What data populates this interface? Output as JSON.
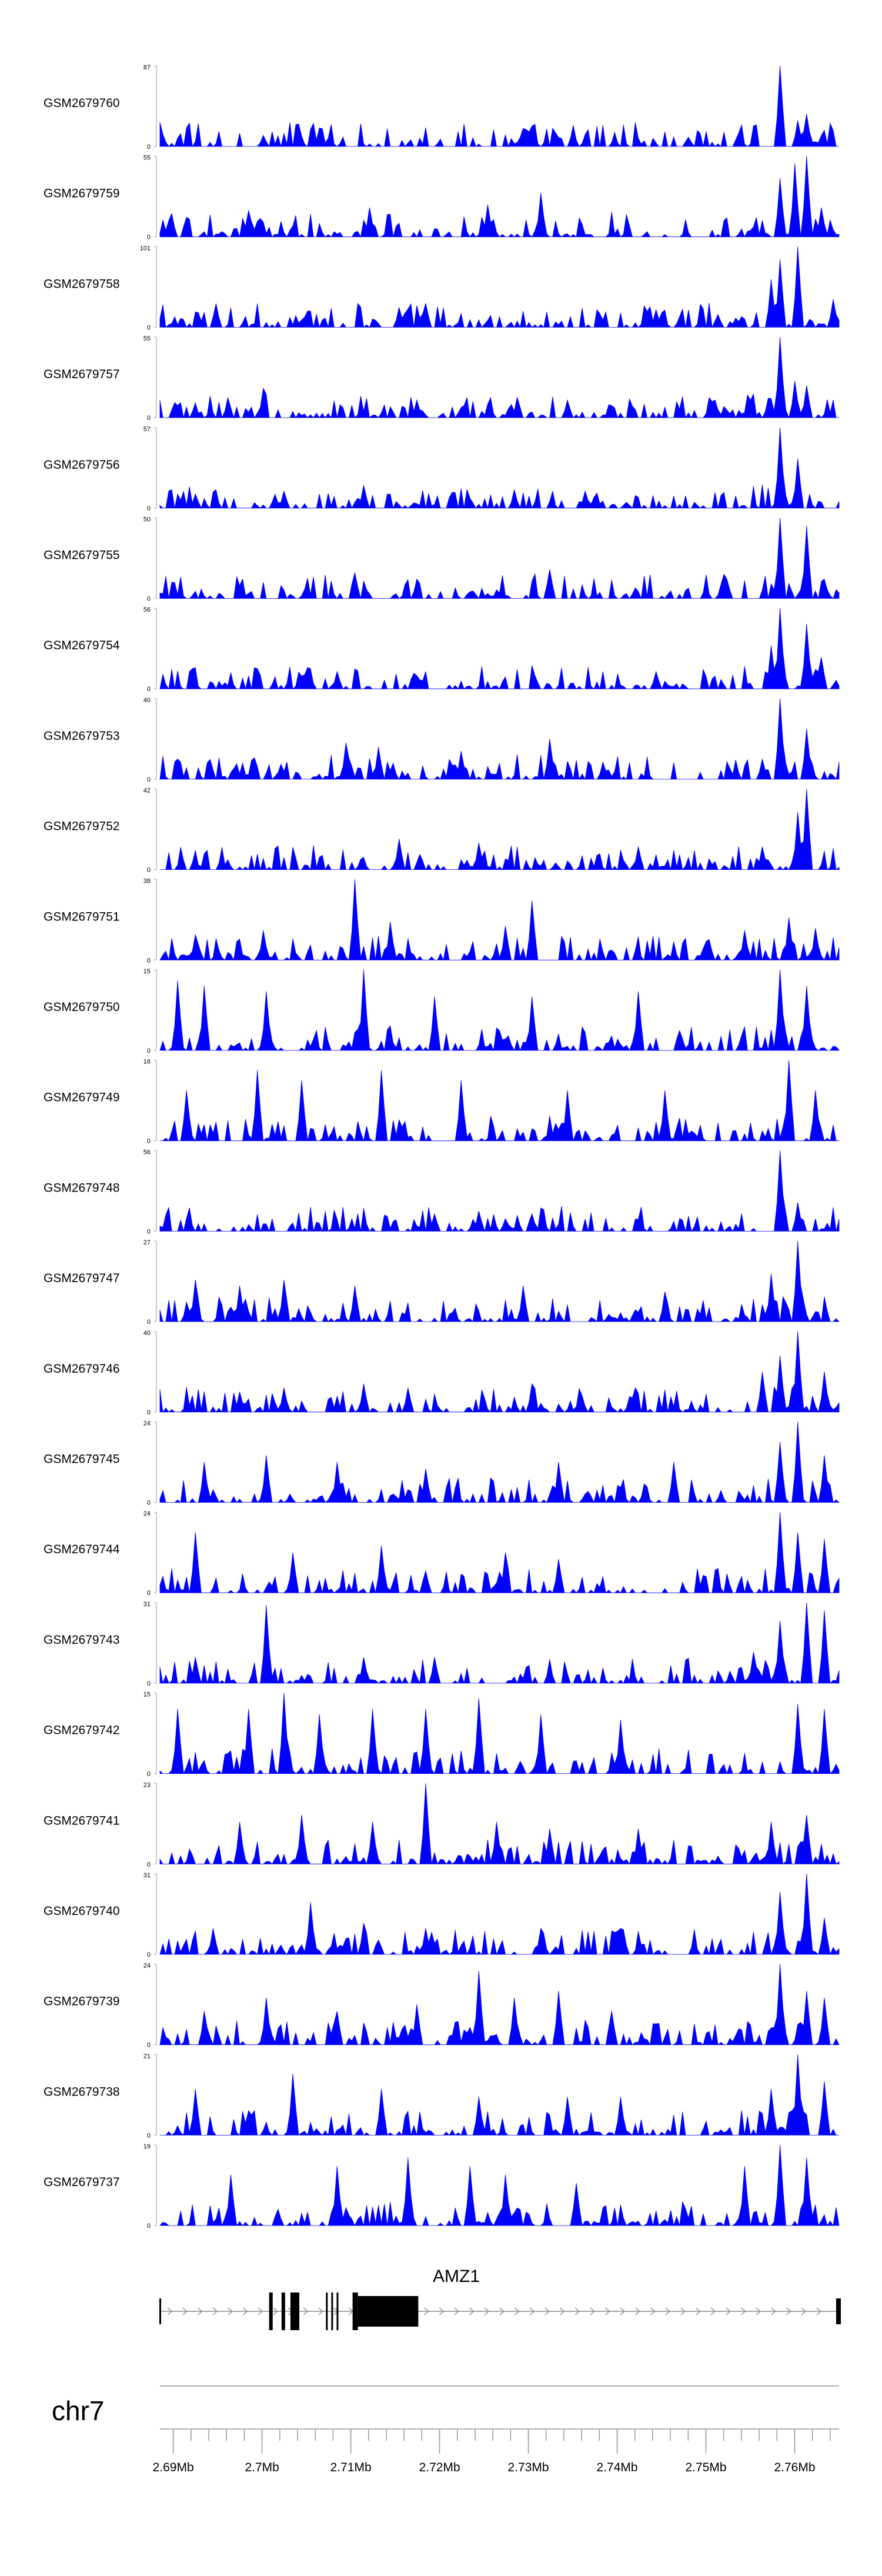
{
  "chart_data": {
    "type": "area",
    "description_style": "genome browser coverage tracks",
    "track_color": "#0000ff",
    "x_unit": "Mb",
    "xlim": [
      2.6885,
      2.765
    ],
    "tracks": [
      {
        "name": "GSM2679760",
        "ymax_label": "87",
        "ymin_label": "0",
        "ymax": 87,
        "peaks": [
          [
            2.7,
            12
          ],
          [
            2.7065,
            20
          ],
          [
            2.729,
            10
          ],
          [
            2.748,
            10
          ],
          [
            2.7585,
            87
          ],
          [
            2.7605,
            28
          ],
          [
            2.7615,
            35
          ],
          [
            2.763,
            12
          ]
        ]
      },
      {
        "name": "GSM2679759",
        "ymax_label": "55",
        "ymin_label": "0",
        "ymax": 55,
        "peaks": [
          [
            2.6985,
            18
          ],
          [
            2.712,
            20
          ],
          [
            2.7255,
            22
          ],
          [
            2.7315,
            30
          ],
          [
            2.7585,
            40
          ],
          [
            2.76,
            50
          ],
          [
            2.7615,
            55
          ],
          [
            2.763,
            20
          ]
        ]
      },
      {
        "name": "GSM2679758",
        "ymax_label": "101",
        "ymin_label": "0",
        "ymax": 101,
        "peaks": [
          [
            2.7155,
            25
          ],
          [
            2.7185,
            30
          ],
          [
            2.7445,
            22
          ],
          [
            2.7575,
            60
          ],
          [
            2.7585,
            85
          ],
          [
            2.7605,
            101
          ],
          [
            2.7645,
            35
          ]
        ]
      },
      {
        "name": "GSM2679757",
        "ymax_label": "55",
        "ymin_label": "0",
        "ymax": 55,
        "peaks": [
          [
            2.7,
            20
          ],
          [
            2.7175,
            12
          ],
          [
            2.7345,
            12
          ],
          [
            2.751,
            12
          ],
          [
            2.7585,
            55
          ],
          [
            2.76,
            25
          ],
          [
            2.7615,
            22
          ]
        ]
      },
      {
        "name": "GSM2679756",
        "ymax_label": "57",
        "ymin_label": "0",
        "ymax": 57,
        "peaks": [
          [
            2.6925,
            10
          ],
          [
            2.7025,
            12
          ],
          [
            2.7115,
            16
          ],
          [
            2.7365,
            12
          ],
          [
            2.7585,
            57
          ],
          [
            2.7605,
            35
          ]
        ]
      },
      {
        "name": "GSM2679755",
        "ymax_label": "50",
        "ymin_label": "0",
        "ymax": 50,
        "peaks": [
          [
            2.7105,
            16
          ],
          [
            2.7175,
            12
          ],
          [
            2.7325,
            18
          ],
          [
            2.7525,
            12
          ],
          [
            2.7585,
            50
          ],
          [
            2.7615,
            45
          ],
          [
            2.7635,
            12
          ]
        ]
      },
      {
        "name": "GSM2679754",
        "ymax_label": "56",
        "ymin_label": "0",
        "ymax": 56,
        "peaks": [
          [
            2.6995,
            14
          ],
          [
            2.7085,
            12
          ],
          [
            2.7445,
            12
          ],
          [
            2.7575,
            30
          ],
          [
            2.7585,
            56
          ],
          [
            2.7615,
            45
          ],
          [
            2.763,
            22
          ]
        ]
      },
      {
        "name": "GSM2679753",
        "ymax_label": "40",
        "ymin_label": "0",
        "ymax": 40,
        "peaks": [
          [
            2.7095,
            18
          ],
          [
            2.713,
            16
          ],
          [
            2.7225,
            14
          ],
          [
            2.7325,
            20
          ],
          [
            2.7565,
            10
          ],
          [
            2.7585,
            40
          ],
          [
            2.7615,
            25
          ]
        ]
      },
      {
        "name": "GSM2679752",
        "ymax_label": "42",
        "ymin_label": "0",
        "ymax": 42,
        "peaks": [
          [
            2.7155,
            16
          ],
          [
            2.7245,
            14
          ],
          [
            2.7425,
            12
          ],
          [
            2.7565,
            12
          ],
          [
            2.7605,
            30
          ],
          [
            2.7615,
            42
          ]
        ]
      },
      {
        "name": "GSM2679751",
        "ymax_label": "38",
        "ymin_label": "0",
        "ymax": 38,
        "peaks": [
          [
            2.6925,
            12
          ],
          [
            2.7,
            14
          ],
          [
            2.7105,
            38
          ],
          [
            2.7145,
            18
          ],
          [
            2.7275,
            16
          ],
          [
            2.7305,
            28
          ],
          [
            2.7545,
            14
          ],
          [
            2.7595,
            20
          ],
          [
            2.7625,
            15
          ]
        ]
      },
      {
        "name": "GSM2679750",
        "ymax_label": "15",
        "ymin_label": "0",
        "ymax": 15,
        "peaks": [
          [
            2.6905,
            13
          ],
          [
            2.6935,
            12
          ],
          [
            2.7005,
            11
          ],
          [
            2.7115,
            15
          ],
          [
            2.7195,
            10
          ],
          [
            2.7305,
            10
          ],
          [
            2.7425,
            11
          ],
          [
            2.7585,
            15
          ],
          [
            2.7615,
            12
          ]
        ]
      },
      {
        "name": "GSM2679749",
        "ymax_label": "16",
        "ymin_label": "0",
        "ymax": 16,
        "peaks": [
          [
            2.6915,
            10
          ],
          [
            2.6995,
            14
          ],
          [
            2.7045,
            12
          ],
          [
            2.7135,
            14
          ],
          [
            2.7225,
            12
          ],
          [
            2.7345,
            10
          ],
          [
            2.7455,
            10
          ],
          [
            2.7595,
            16
          ],
          [
            2.7625,
            10
          ]
        ]
      },
      {
        "name": "GSM2679748",
        "ymax_label": "56",
        "ymin_label": "0",
        "ymax": 56,
        "peaks": [
          [
            2.7195,
            12
          ],
          [
            2.7245,
            14
          ],
          [
            2.7305,
            12
          ],
          [
            2.7585,
            56
          ],
          [
            2.7605,
            20
          ]
        ]
      },
      {
        "name": "GSM2679747",
        "ymax_label": "27",
        "ymin_label": "0",
        "ymax": 27,
        "peaks": [
          [
            2.6925,
            14
          ],
          [
            2.6975,
            12
          ],
          [
            2.7025,
            14
          ],
          [
            2.7105,
            12
          ],
          [
            2.7295,
            12
          ],
          [
            2.7455,
            10
          ],
          [
            2.7575,
            16
          ],
          [
            2.7605,
            27
          ]
        ]
      },
      {
        "name": "GSM2679746",
        "ymax_label": "40",
        "ymin_label": "0",
        "ymax": 40,
        "peaks": [
          [
            2.6975,
            10
          ],
          [
            2.7025,
            12
          ],
          [
            2.7115,
            14
          ],
          [
            2.7165,
            12
          ],
          [
            2.7305,
            14
          ],
          [
            2.7565,
            20
          ],
          [
            2.7585,
            28
          ],
          [
            2.7605,
            40
          ],
          [
            2.7635,
            20
          ]
        ]
      },
      {
        "name": "GSM2679745",
        "ymax_label": "24",
        "ymin_label": "0",
        "ymax": 24,
        "peaks": [
          [
            2.6935,
            12
          ],
          [
            2.7005,
            14
          ],
          [
            2.7085,
            12
          ],
          [
            2.7185,
            10
          ],
          [
            2.7335,
            12
          ],
          [
            2.7465,
            12
          ],
          [
            2.7585,
            18
          ],
          [
            2.7605,
            24
          ],
          [
            2.7635,
            14
          ]
        ]
      },
      {
        "name": "GSM2679744",
        "ymax_label": "24",
        "ymin_label": "0",
        "ymax": 24,
        "peaks": [
          [
            2.6925,
            18
          ],
          [
            2.7035,
            12
          ],
          [
            2.7135,
            14
          ],
          [
            2.7275,
            12
          ],
          [
            2.7335,
            10
          ],
          [
            2.7585,
            24
          ],
          [
            2.7605,
            18
          ],
          [
            2.7635,
            16
          ]
        ]
      },
      {
        "name": "GSM2679743",
        "ymax_label": "31",
        "ymin_label": "0",
        "ymax": 31,
        "peaks": [
          [
            2.6925,
            10
          ],
          [
            2.7005,
            30
          ],
          [
            2.7115,
            10
          ],
          [
            2.7195,
            10
          ],
          [
            2.7555,
            12
          ],
          [
            2.7585,
            24
          ],
          [
            2.7615,
            31
          ],
          [
            2.7635,
            28
          ]
        ]
      },
      {
        "name": "GSM2679742",
        "ymax_label": "15",
        "ymin_label": "0",
        "ymax": 15,
        "peaks": [
          [
            2.6905,
            12
          ],
          [
            2.6985,
            12
          ],
          [
            2.7025,
            15
          ],
          [
            2.7065,
            11
          ],
          [
            2.7125,
            12
          ],
          [
            2.7185,
            12
          ],
          [
            2.7245,
            14
          ],
          [
            2.7315,
            11
          ],
          [
            2.7405,
            10
          ],
          [
            2.7605,
            13
          ],
          [
            2.7635,
            12
          ]
        ]
      },
      {
        "name": "GSM2679741",
        "ymax_label": "23",
        "ymin_label": "0",
        "ymax": 23,
        "peaks": [
          [
            2.6975,
            12
          ],
          [
            2.7045,
            14
          ],
          [
            2.7125,
            12
          ],
          [
            2.7185,
            23
          ],
          [
            2.7265,
            12
          ],
          [
            2.7325,
            10
          ],
          [
            2.7425,
            10
          ],
          [
            2.7575,
            12
          ],
          [
            2.7615,
            14
          ]
        ]
      },
      {
        "name": "GSM2679740",
        "ymax_label": "31",
        "ymin_label": "0",
        "ymax": 31,
        "peaks": [
          [
            2.6945,
            10
          ],
          [
            2.7055,
            20
          ],
          [
            2.7115,
            12
          ],
          [
            2.7185,
            10
          ],
          [
            2.7315,
            10
          ],
          [
            2.7405,
            10
          ],
          [
            2.7585,
            24
          ],
          [
            2.7615,
            31
          ],
          [
            2.7635,
            14
          ]
        ]
      },
      {
        "name": "GSM2679739",
        "ymax_label": "24",
        "ymin_label": "0",
        "ymax": 24,
        "peaks": [
          [
            2.6935,
            10
          ],
          [
            2.7005,
            14
          ],
          [
            2.7085,
            10
          ],
          [
            2.7175,
            12
          ],
          [
            2.7245,
            22
          ],
          [
            2.7285,
            14
          ],
          [
            2.7335,
            16
          ],
          [
            2.7395,
            10
          ],
          [
            2.7585,
            24
          ],
          [
            2.7615,
            16
          ],
          [
            2.7635,
            14
          ]
        ]
      },
      {
        "name": "GSM2679738",
        "ymax_label": "21",
        "ymin_label": "0",
        "ymax": 21,
        "peaks": [
          [
            2.6925,
            12
          ],
          [
            2.7035,
            16
          ],
          [
            2.7135,
            12
          ],
          [
            2.7245,
            10
          ],
          [
            2.7345,
            10
          ],
          [
            2.7405,
            10
          ],
          [
            2.7575,
            12
          ],
          [
            2.7605,
            21
          ],
          [
            2.7635,
            14
          ]
        ]
      },
      {
        "name": "GSM2679737",
        "ymax_label": "19",
        "ymin_label": "0",
        "ymax": 19,
        "peaks": [
          [
            2.6965,
            12
          ],
          [
            2.7085,
            14
          ],
          [
            2.7165,
            16
          ],
          [
            2.7235,
            14
          ],
          [
            2.7275,
            12
          ],
          [
            2.7355,
            10
          ],
          [
            2.7545,
            14
          ],
          [
            2.7585,
            19
          ],
          [
            2.7615,
            16
          ]
        ]
      }
    ],
    "gene": {
      "name": "AMZ1",
      "strand": "+",
      "start": 2.6885,
      "end": 2.765,
      "exons": [
        [
          2.7008,
          2.7012
        ],
        [
          2.7022,
          2.7026
        ],
        [
          2.7032,
          2.7042
        ],
        [
          2.7072,
          2.7074
        ],
        [
          2.7078,
          2.708
        ],
        [
          2.7084,
          2.7086
        ],
        [
          2.7102,
          2.7108
        ],
        [
          2.7108,
          2.7176
        ]
      ]
    },
    "chromosome": "chr7",
    "axis_ticks": [
      {
        "value": 2.69,
        "label": "2.69Mb"
      },
      {
        "value": 2.7,
        "label": "2.7Mb"
      },
      {
        "value": 2.71,
        "label": "2.71Mb"
      },
      {
        "value": 2.72,
        "label": "2.72Mb"
      },
      {
        "value": 2.73,
        "label": "2.73Mb"
      },
      {
        "value": 2.74,
        "label": "2.74Mb"
      },
      {
        "value": 2.75,
        "label": "2.75Mb"
      },
      {
        "value": 2.76,
        "label": "2.76Mb"
      }
    ],
    "minor_tick_step": 0.002
  }
}
